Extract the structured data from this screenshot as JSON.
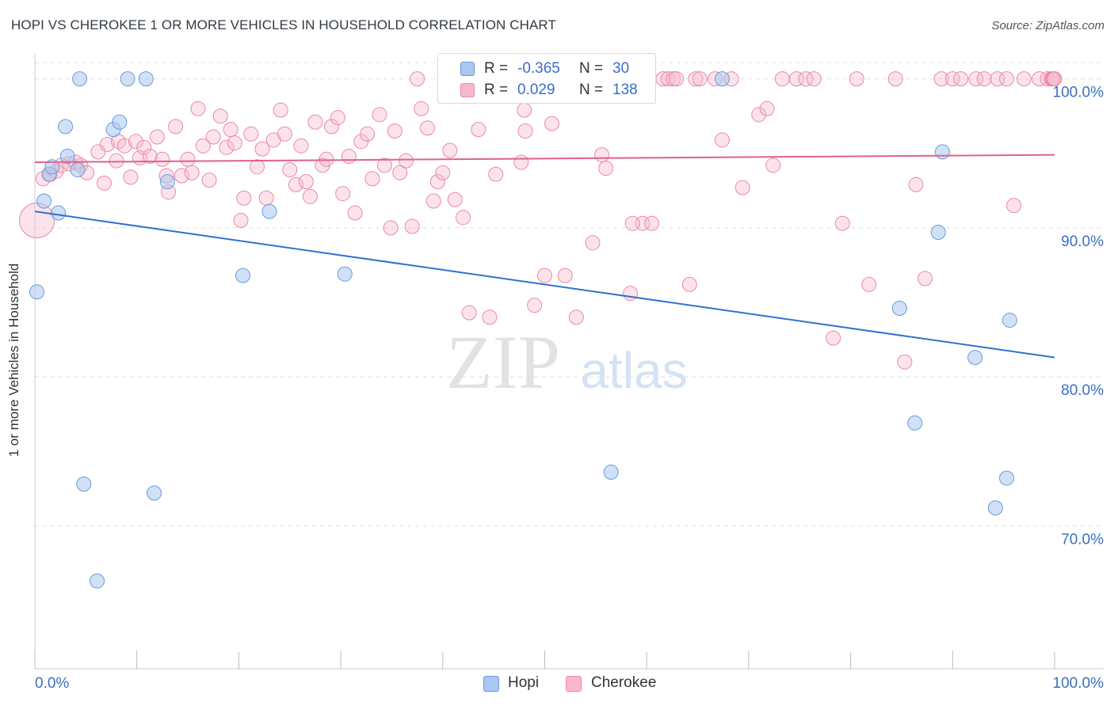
{
  "title": "HOPI VS CHEROKEE 1 OR MORE VEHICLES IN HOUSEHOLD CORRELATION CHART",
  "source": "Source: ZipAtlas.com",
  "watermark": {
    "zip": "ZIP",
    "atlas": "atlas"
  },
  "legend": {
    "r_label": "R =",
    "n_label": "N =",
    "hopi": {
      "r": "-0.365",
      "n": "30"
    },
    "cherokee": {
      "r": "0.029",
      "n": "138"
    }
  },
  "colors": {
    "hopi_fill": "#aac8f0",
    "hopi_stroke": "#6a9ad8",
    "hopi_line": "#2f72d0",
    "cherokee_fill": "#f7b8cc",
    "cherokee_stroke": "#e88aa8",
    "cherokee_line": "#e0618e",
    "axis_text": "#3a6fc4",
    "grid": "#dddddd"
  },
  "chart_data": {
    "type": "scatter",
    "xlabel": "",
    "ylabel": "1 or more Vehicles in Household",
    "xlim": [
      0,
      100
    ],
    "ylim": [
      60.4,
      102
    ],
    "x_tick_labels": [
      {
        "value": 0,
        "label": "0.0%"
      },
      {
        "value": 100,
        "label": "100.0%"
      }
    ],
    "y_tick_labels": [
      {
        "value": 100,
        "label": "100.0%"
      },
      {
        "value": 90,
        "label": "90.0%"
      },
      {
        "value": 80,
        "label": "80.0%"
      },
      {
        "value": 70,
        "label": "70.0%"
      }
    ],
    "grid": true,
    "legend_position": "top-center",
    "series": [
      {
        "name": "Hopi",
        "trend": {
          "x": [
            0,
            100
          ],
          "y": [
            91.1,
            81.3
          ]
        },
        "points": [
          [
            0.2,
            85.7
          ],
          [
            0.9,
            91.8
          ],
          [
            1.4,
            93.6
          ],
          [
            1.7,
            94.1
          ],
          [
            2.3,
            91.0
          ],
          [
            3.0,
            96.8
          ],
          [
            3.2,
            94.8
          ],
          [
            4.2,
            93.9
          ],
          [
            4.4,
            100
          ],
          [
            4.8,
            72.8
          ],
          [
            6.1,
            66.3
          ],
          [
            7.7,
            96.6
          ],
          [
            8.3,
            97.1
          ],
          [
            9.1,
            100
          ],
          [
            10.9,
            100
          ],
          [
            11.7,
            72.2
          ],
          [
            13.0,
            93.1
          ],
          [
            23.0,
            91.1
          ],
          [
            20.4,
            86.8
          ],
          [
            30.4,
            86.9
          ],
          [
            56.5,
            73.6
          ],
          [
            67.4,
            100
          ],
          [
            84.8,
            84.6
          ],
          [
            86.3,
            76.9
          ],
          [
            88.6,
            89.7
          ],
          [
            89.0,
            95.1
          ],
          [
            92.2,
            81.3
          ],
          [
            94.2,
            71.2
          ],
          [
            95.3,
            73.2
          ],
          [
            95.6,
            83.8
          ]
        ]
      },
      {
        "name": "Cherokee",
        "trend": {
          "x": [
            0,
            100
          ],
          "y": [
            94.4,
            94.9
          ]
        },
        "points": [
          [
            0.2,
            90.5
          ],
          [
            0.8,
            93.3
          ],
          [
            1.5,
            93.6
          ],
          [
            2.1,
            93.8
          ],
          [
            2.6,
            94.2
          ],
          [
            3.4,
            94.3
          ],
          [
            4.0,
            94.4
          ],
          [
            4.5,
            94.2
          ],
          [
            5.1,
            93.7
          ],
          [
            6.2,
            95.1
          ],
          [
            6.8,
            93.0
          ],
          [
            7.1,
            95.6
          ],
          [
            8.0,
            94.5
          ],
          [
            8.2,
            95.8
          ],
          [
            8.8,
            95.5
          ],
          [
            9.4,
            93.4
          ],
          [
            9.9,
            95.8
          ],
          [
            10.3,
            94.7
          ],
          [
            10.7,
            95.4
          ],
          [
            11.3,
            94.8
          ],
          [
            12.0,
            96.1
          ],
          [
            12.5,
            94.6
          ],
          [
            12.9,
            93.5
          ],
          [
            13.1,
            92.4
          ],
          [
            13.8,
            96.8
          ],
          [
            14.4,
            93.5
          ],
          [
            15.0,
            94.6
          ],
          [
            15.4,
            93.7
          ],
          [
            16.0,
            98.0
          ],
          [
            16.5,
            95.5
          ],
          [
            17.1,
            93.2
          ],
          [
            17.5,
            96.1
          ],
          [
            18.2,
            97.5
          ],
          [
            18.8,
            95.4
          ],
          [
            19.2,
            96.6
          ],
          [
            19.6,
            95.7
          ],
          [
            20.2,
            90.5
          ],
          [
            20.5,
            92.0
          ],
          [
            21.2,
            96.3
          ],
          [
            21.8,
            94.1
          ],
          [
            22.3,
            95.3
          ],
          [
            22.7,
            92.0
          ],
          [
            23.4,
            95.9
          ],
          [
            24.1,
            97.9
          ],
          [
            24.5,
            96.3
          ],
          [
            25.0,
            93.9
          ],
          [
            25.6,
            92.9
          ],
          [
            26.1,
            95.5
          ],
          [
            26.6,
            93.1
          ],
          [
            27.0,
            92.1
          ],
          [
            27.5,
            97.1
          ],
          [
            28.2,
            94.2
          ],
          [
            28.6,
            94.6
          ],
          [
            29.1,
            96.8
          ],
          [
            29.7,
            97.4
          ],
          [
            30.2,
            92.3
          ],
          [
            30.8,
            94.8
          ],
          [
            31.4,
            91.0
          ],
          [
            32.0,
            95.8
          ],
          [
            32.6,
            96.3
          ],
          [
            33.1,
            93.3
          ],
          [
            33.8,
            97.6
          ],
          [
            34.3,
            94.2
          ],
          [
            34.9,
            90.0
          ],
          [
            35.3,
            96.5
          ],
          [
            35.8,
            93.7
          ],
          [
            36.4,
            94.5
          ],
          [
            37.0,
            90.1
          ],
          [
            37.5,
            100
          ],
          [
            37.9,
            98.0
          ],
          [
            38.5,
            96.7
          ],
          [
            39.1,
            91.8
          ],
          [
            39.5,
            93.1
          ],
          [
            40.0,
            93.7
          ],
          [
            40.7,
            95.2
          ],
          [
            41.2,
            91.9
          ],
          [
            42.0,
            90.7
          ],
          [
            42.6,
            84.3
          ],
          [
            43.5,
            96.6
          ],
          [
            44.6,
            84.0
          ],
          [
            45.2,
            93.6
          ],
          [
            46.8,
            100
          ],
          [
            47.7,
            94.4
          ],
          [
            48.0,
            97.9
          ],
          [
            49.0,
            84.8
          ],
          [
            50.0,
            86.8
          ],
          [
            50.7,
            97.0
          ],
          [
            52.0,
            86.8
          ],
          [
            53.1,
            84.0
          ],
          [
            54.7,
            89.0
          ],
          [
            55.6,
            94.9
          ],
          [
            56.0,
            94.0
          ],
          [
            58.4,
            85.6
          ],
          [
            59.6,
            90.3
          ],
          [
            60.5,
            90.3
          ],
          [
            61.6,
            100
          ],
          [
            62.1,
            100
          ],
          [
            62.6,
            100
          ],
          [
            62.9,
            100
          ],
          [
            64.2,
            86.2
          ],
          [
            64.8,
            100
          ],
          [
            65.2,
            100
          ],
          [
            66.7,
            100
          ],
          [
            67.4,
            95.9
          ],
          [
            68.3,
            100
          ],
          [
            69.4,
            92.7
          ],
          [
            71.0,
            97.6
          ],
          [
            71.8,
            98.0
          ],
          [
            72.4,
            94.2
          ],
          [
            73.3,
            100
          ],
          [
            74.7,
            100
          ],
          [
            75.6,
            100
          ],
          [
            76.4,
            100
          ],
          [
            78.3,
            82.6
          ],
          [
            79.2,
            90.3
          ],
          [
            80.6,
            100
          ],
          [
            81.8,
            86.2
          ],
          [
            84.4,
            100
          ],
          [
            85.3,
            81.0
          ],
          [
            86.4,
            92.9
          ],
          [
            87.3,
            86.6
          ],
          [
            88.9,
            100
          ],
          [
            90.0,
            100
          ],
          [
            90.8,
            100
          ],
          [
            92.3,
            100
          ],
          [
            93.1,
            100
          ],
          [
            94.4,
            100
          ],
          [
            95.3,
            100
          ],
          [
            96.0,
            91.5
          ],
          [
            97.0,
            100
          ],
          [
            98.5,
            100
          ],
          [
            99.3,
            100
          ],
          [
            99.7,
            100
          ],
          [
            99.8,
            100
          ],
          [
            99.9,
            100
          ],
          [
            100,
            100
          ],
          [
            58.6,
            90.3
          ],
          [
            48.1,
            96.5
          ]
        ]
      }
    ]
  }
}
